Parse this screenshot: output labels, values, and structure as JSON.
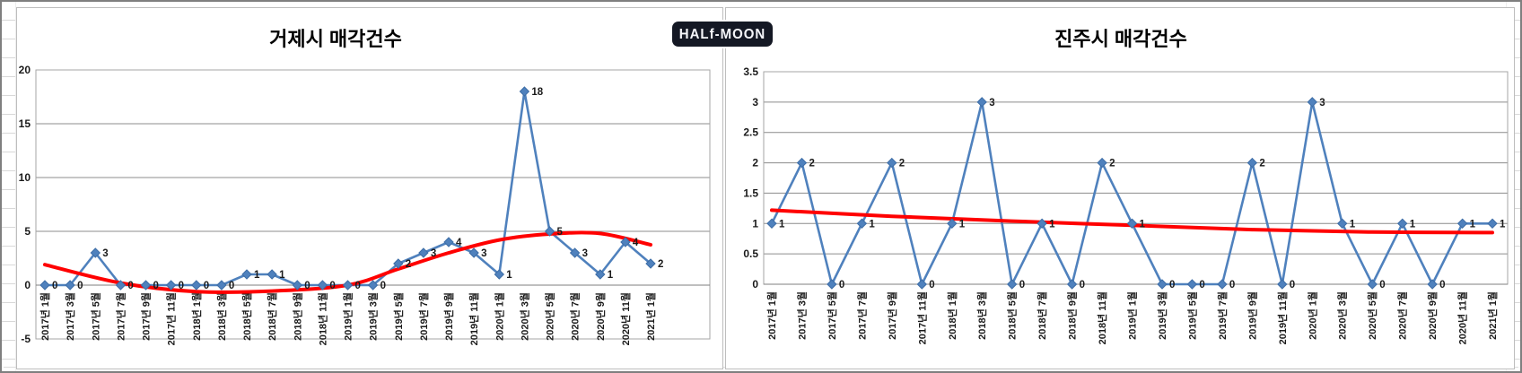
{
  "badge": {
    "label": "HALf-MOON"
  },
  "colors": {
    "series": "#4f81bd",
    "trend": "#ff0000",
    "grid": "#8c8c8c",
    "plot_border": "#a6a6a6",
    "tick_text": "#1a1a1a",
    "title_text": "#000000",
    "badge_bg": "#141824",
    "badge_text": "#f5f6fa",
    "chart_bg": "#ffffff"
  },
  "chart_data": [
    {
      "type": "line",
      "title": "거제시 매각건수",
      "x_labels": [
        "2017년 1월",
        "2017년 3월",
        "2017년 5월",
        "2017년 7월",
        "2017년 9월",
        "2017년 11월",
        "2018년 1월",
        "2018년 3월",
        "2018년 5월",
        "2018년 7월",
        "2018년 9월",
        "2018년 11월",
        "2019년 1월",
        "2019년 3월",
        "2019년 5월",
        "2019년 7월",
        "2019년 9월",
        "2019년 11월",
        "2020년 1월",
        "2020년 3월",
        "2020년 5월",
        "2020년 7월",
        "2020년 9월",
        "2020년 11월",
        "2021년 1월"
      ],
      "series": [
        {
          "name": "매각건수",
          "marker": "diamond",
          "values": [
            0,
            0,
            3,
            0,
            0,
            0,
            0,
            0,
            1,
            1,
            0,
            0,
            0,
            0,
            2,
            3,
            4,
            3,
            1,
            18,
            5,
            3,
            1,
            4,
            2
          ]
        }
      ],
      "data_labels": true,
      "trend": {
        "type": "polynomial",
        "points": [
          [
            0,
            1.9
          ],
          [
            3,
            0.2
          ],
          [
            6,
            -0.6
          ],
          [
            9,
            -0.55
          ],
          [
            12,
            0.0
          ],
          [
            14,
            1.5
          ],
          [
            16,
            3.0
          ],
          [
            18,
            4.2
          ],
          [
            20,
            4.75
          ],
          [
            22,
            4.8
          ],
          [
            24,
            3.75
          ]
        ]
      },
      "ylim": [
        -5,
        20
      ],
      "yticks": [
        20,
        15,
        10,
        5,
        0,
        -5
      ],
      "x_axis_cross": 0,
      "grid": "horizontal",
      "legend": "none"
    },
    {
      "type": "line",
      "title": "진주시 매각건수",
      "x_labels": [
        "2017년 1월",
        "2017년 3월",
        "2017년 5월",
        "2017년 7월",
        "2017년 9월",
        "2017년 11월",
        "2018년 1월",
        "2018년 3월",
        "2018년 5월",
        "2018년 7월",
        "2018년 9월",
        "2018년 11월",
        "2019년 1월",
        "2019년 3월",
        "2019년 5월",
        "2019년 7월",
        "2019년 9월",
        "2019년 11월",
        "2020년 1월",
        "2020년 3월",
        "2020년 5월",
        "2020년 7월",
        "2020년 9월",
        "2020년 11월",
        "2021년 1월"
      ],
      "series": [
        {
          "name": "매각건수",
          "marker": "diamond",
          "values": [
            1,
            2,
            0,
            1,
            2,
            0,
            1,
            3,
            0,
            1,
            0,
            2,
            1,
            0,
            0,
            0,
            2,
            0,
            3,
            1,
            0,
            1,
            0,
            1,
            1
          ]
        }
      ],
      "data_labels": true,
      "trend": {
        "type": "power",
        "points": [
          [
            0,
            1.22
          ],
          [
            4,
            1.12
          ],
          [
            8,
            1.04
          ],
          [
            12,
            0.97
          ],
          [
            16,
            0.9
          ],
          [
            20,
            0.86
          ],
          [
            24,
            0.85
          ]
        ]
      },
      "ylim": [
        0,
        3.5
      ],
      "yticks": [
        3.5,
        3,
        2.5,
        2,
        1.5,
        1,
        0.5,
        0
      ],
      "x_axis_cross": 0,
      "grid": "horizontal",
      "legend": "none"
    }
  ]
}
